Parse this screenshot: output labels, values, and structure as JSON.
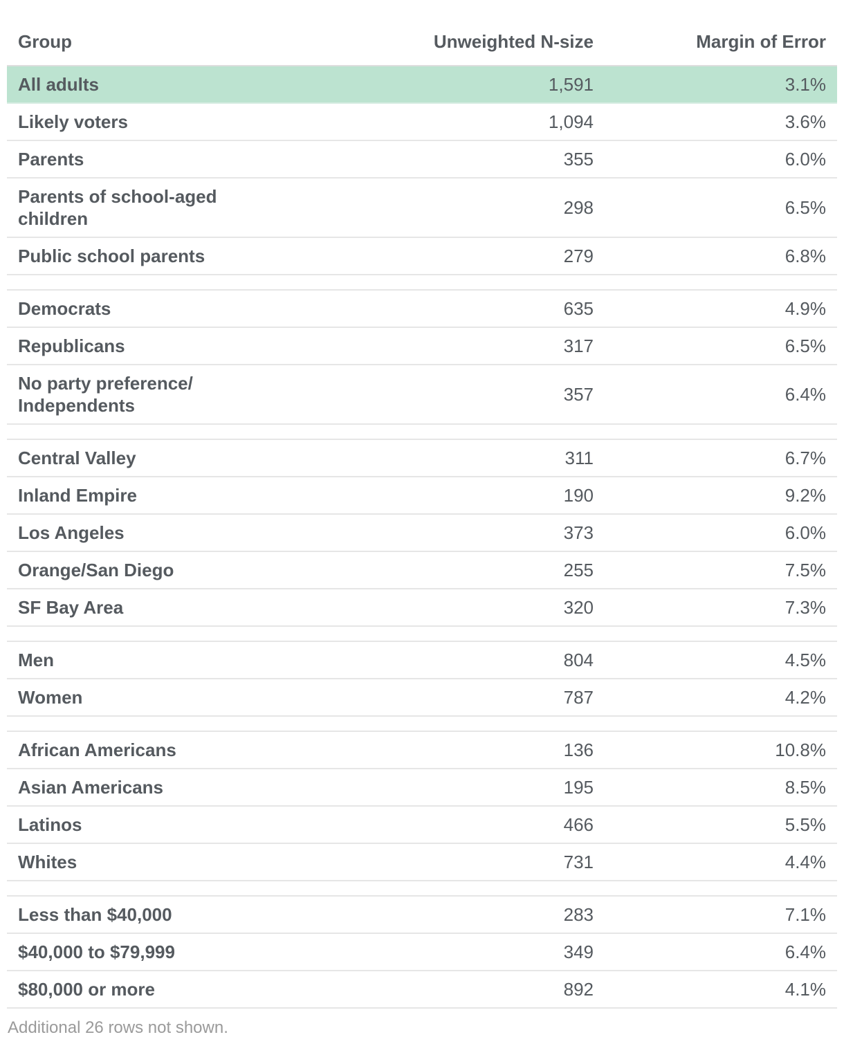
{
  "chart_data": {
    "type": "table",
    "columns": [
      "Group",
      "Unweighted N-size",
      "Margin of Error"
    ],
    "rows": [
      {
        "group": "All adults",
        "n": "1,591",
        "moe": "3.1%",
        "highlight": true
      },
      {
        "group": "Likely voters",
        "n": "1,094",
        "moe": "3.6%"
      },
      {
        "group": "Parents",
        "n": "355",
        "moe": "6.0%"
      },
      {
        "group": "Parents of school-aged children",
        "n": "298",
        "moe": "6.5%"
      },
      {
        "group": "Public school parents",
        "n": "279",
        "moe": "6.8%"
      },
      {
        "spacer": true
      },
      {
        "group": "Democrats",
        "n": "635",
        "moe": "4.9%"
      },
      {
        "group": "Republicans",
        "n": "317",
        "moe": "6.5%"
      },
      {
        "group": "No party preference/ Independents",
        "n": "357",
        "moe": "6.4%"
      },
      {
        "spacer": true
      },
      {
        "group": "Central Valley",
        "n": "311",
        "moe": "6.7%"
      },
      {
        "group": "Inland Empire",
        "n": "190",
        "moe": "9.2%"
      },
      {
        "group": "Los Angeles",
        "n": "373",
        "moe": "6.0%"
      },
      {
        "group": "Orange/San Diego",
        "n": "255",
        "moe": "7.5%"
      },
      {
        "group": "SF Bay Area",
        "n": "320",
        "moe": "7.3%"
      },
      {
        "spacer": true
      },
      {
        "group": "Men",
        "n": "804",
        "moe": "4.5%"
      },
      {
        "group": "Women",
        "n": "787",
        "moe": "4.2%"
      },
      {
        "spacer": true
      },
      {
        "group": "African Americans",
        "n": "136",
        "moe": "10.8%"
      },
      {
        "group": "Asian Americans",
        "n": "195",
        "moe": "8.5%"
      },
      {
        "group": "Latinos",
        "n": "466",
        "moe": "5.5%"
      },
      {
        "group": "Whites",
        "n": "731",
        "moe": "4.4%"
      },
      {
        "spacer": true
      },
      {
        "group": "Less than $40,000",
        "n": "283",
        "moe": "7.1%"
      },
      {
        "group": "$40,000 to $79,999",
        "n": "349",
        "moe": "6.4%"
      },
      {
        "group": "$80,000 or more",
        "n": "892",
        "moe": "4.1%"
      }
    ],
    "footnote": "Additional 26 rows not shown."
  },
  "colors": {
    "highlight": "#bce3d0",
    "text": "#555a5f",
    "rule": "#e6e6e6",
    "footnote": "#9a9a9a"
  }
}
